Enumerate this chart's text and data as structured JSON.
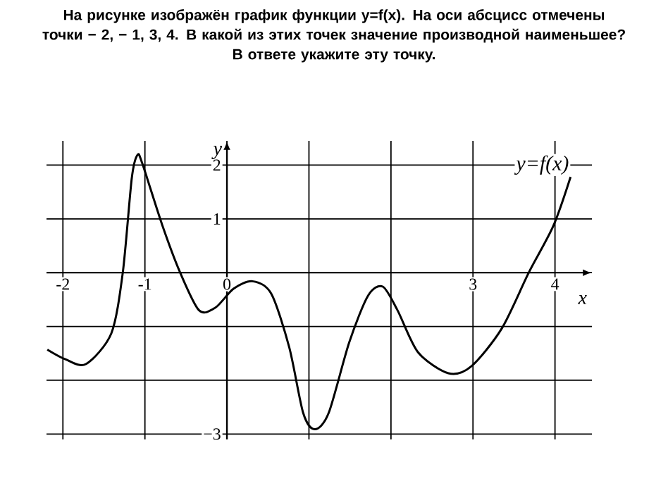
{
  "chart_data": {
    "type": "line",
    "title": "На рисунке изображён график функции y=f(x). На оси абсцисс отмечены точки − 2, − 1, 3, 4. В какой из этих точек значение производной наименьшее?",
    "subtitle": "В ответе укажите эту точку.",
    "xlabel": "x",
    "ylabel": "y",
    "series": [
      {
        "name": "y=f(x)",
        "color": "#000000",
        "x": [
          -2.19,
          -1.97,
          -1.72,
          -1.41,
          -1.27,
          -1.16,
          -1.09,
          -1.03,
          -0.79,
          -0.57,
          -0.34,
          -0.14,
          0.08,
          0.31,
          0.54,
          0.76,
          0.93,
          1.07,
          1.24,
          1.49,
          1.72,
          1.9,
          2.08,
          2.33,
          2.7,
          2.98,
          3.35,
          3.68,
          3.98,
          4.19
        ],
        "values": [
          -1.43,
          -1.61,
          -1.7,
          -1.13,
          0,
          1.76,
          2.19,
          2.02,
          0.89,
          0,
          -0.7,
          -0.65,
          -0.3,
          -0.16,
          -0.39,
          -1.39,
          -2.61,
          -2.91,
          -2.61,
          -1.3,
          -0.43,
          -0.26,
          -0.7,
          -1.48,
          -1.87,
          -1.74,
          -1.04,
          0,
          0.87,
          1.78
        ]
      }
    ],
    "xlim": [
      -2.2,
      4.45
    ],
    "ylim": [
      -3.1,
      2.45
    ],
    "xticks": [
      -2,
      -1,
      0,
      {
        "value": 1,
        "label": null
      },
      {
        "value": 2,
        "label": null
      },
      3,
      4
    ],
    "yticks": [
      {
        "value": -3,
        "label": "−3"
      },
      {
        "value": -2,
        "label": null
      },
      {
        "value": -1,
        "label": null
      },
      {
        "value": 0,
        "label": null
      },
      1,
      2
    ],
    "grid": true,
    "marker": "none",
    "line_style": "solid"
  }
}
